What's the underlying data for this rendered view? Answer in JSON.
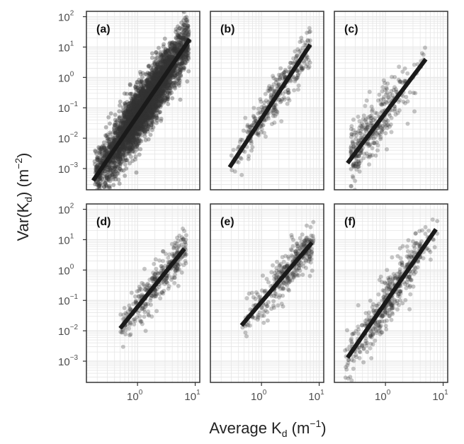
{
  "chart_data": {
    "type": "scatter",
    "layout": "2x3 facets",
    "xlabel": {
      "base": "Average K",
      "sub": "d",
      "unit_open": " (m",
      "unit_sup": "−1",
      "unit_close": ")"
    },
    "ylabel": {
      "base": "Var(K",
      "sub": "d",
      "mid": ") (m",
      "unit_sup": "−2",
      "unit_close": ")"
    },
    "x_scale": "log10",
    "y_scale": "log10",
    "xlim": [
      0.13,
      12
    ],
    "ylim": [
      0.0002,
      150
    ],
    "x_ticks": [
      {
        "base": "10",
        "exp": "0",
        "value": 1
      },
      {
        "base": "10",
        "exp": "1",
        "value": 10
      }
    ],
    "y_ticks": [
      {
        "base": "10",
        "exp": "−3",
        "value": 0.001
      },
      {
        "base": "10",
        "exp": "−2",
        "value": 0.01
      },
      {
        "base": "10",
        "exp": "−1",
        "value": 0.1
      },
      {
        "base": "10",
        "exp": "0",
        "value": 1
      },
      {
        "base": "10",
        "exp": "1",
        "value": 10
      },
      {
        "base": "10",
        "exp": "2",
        "value": 100
      }
    ],
    "grid": true,
    "point_color": "#333333",
    "line_color": "#1a1a1a",
    "panels": [
      {
        "label": "(a)",
        "fit": {
          "x": [
            0.17,
            8
          ],
          "y": [
            0.0004,
            18
          ]
        },
        "x_range": [
          0.18,
          8
        ],
        "center_x": 1.3,
        "spread": 0.45,
        "count": 3800
      },
      {
        "label": "(b)",
        "fit": {
          "x": [
            0.28,
            7
          ],
          "y": [
            0.0011,
            12
          ]
        },
        "x_range": [
          0.3,
          7
        ],
        "center_x": 1.8,
        "spread": 0.35,
        "count": 350
      },
      {
        "label": "(c)",
        "fit": {
          "x": [
            0.22,
            5
          ],
          "y": [
            0.0015,
            4
          ]
        },
        "x_range": [
          0.25,
          5
        ],
        "center_x": 0.6,
        "spread": 0.45,
        "count": 350
      },
      {
        "label": "(d)",
        "fit": {
          "x": [
            0.5,
            6.5
          ],
          "y": [
            0.012,
            5
          ]
        },
        "x_range": [
          0.5,
          7
        ],
        "center_x": 2.3,
        "spread": 0.35,
        "count": 350
      },
      {
        "label": "(e)",
        "fit": {
          "x": [
            0.45,
            7.5
          ],
          "y": [
            0.015,
            8
          ]
        },
        "x_range": [
          0.45,
          8
        ],
        "center_x": 2.8,
        "spread": 0.35,
        "count": 350
      },
      {
        "label": "(f)",
        "fit": {
          "x": [
            0.22,
            7.5
          ],
          "y": [
            0.0013,
            22
          ]
        },
        "x_range": [
          0.2,
          8
        ],
        "center_x": 1.1,
        "spread": 0.4,
        "count": 450
      }
    ]
  }
}
